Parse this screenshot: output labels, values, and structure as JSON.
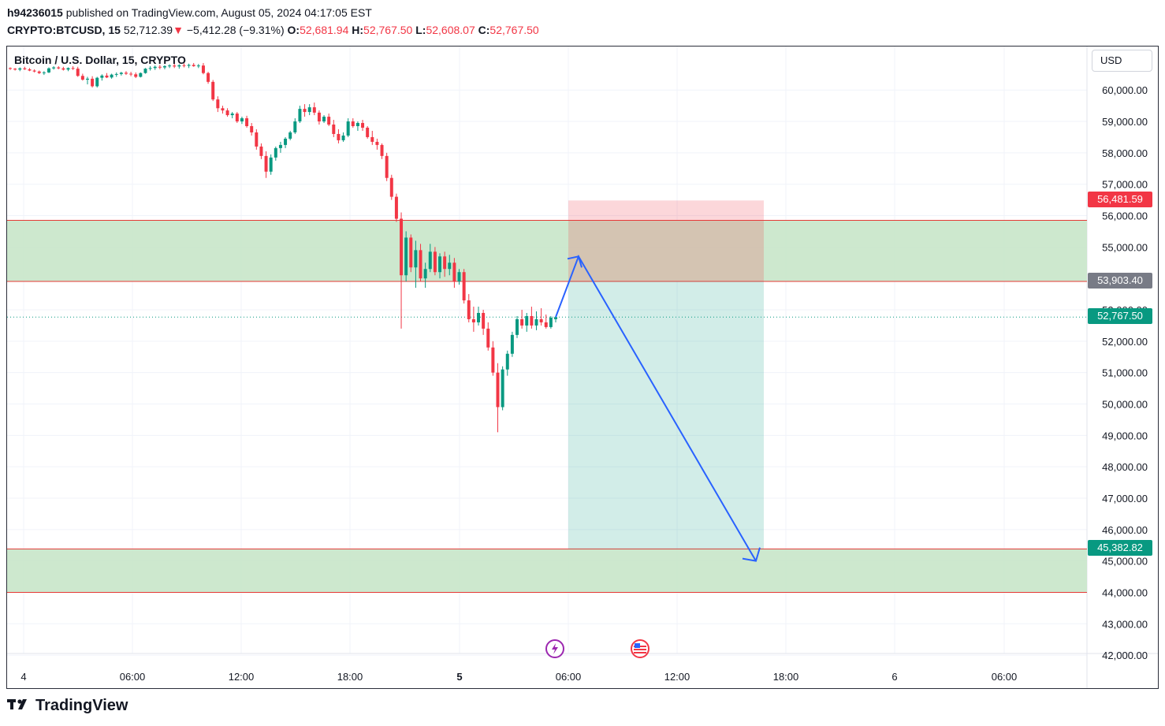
{
  "header": {
    "author": "h94236015",
    "published_text": "published on TradingView.com, August 05, 2024 04:17:05 EST",
    "symbol": "CRYPTO:BTCUSD, 15",
    "last": "52,712.39",
    "arrow": "▼",
    "change": "−5,412.28 (−9.31%)",
    "o_label": "O:",
    "o_value": "52,681.94",
    "h_label": "H:",
    "h_value": "52,767.50",
    "l_label": "L:",
    "l_value": "52,608.07",
    "c_label": "C:",
    "c_value": "52,767.50"
  },
  "chart": {
    "legend": "Bitcoin / U.S. Dollar, 15, CRYPTO",
    "currency_button": "USD",
    "price_axis": [
      "60,000.00",
      "59,000.00",
      "58,000.00",
      "57,000.00",
      "56,000.00",
      "55,000.00",
      "53,000.00",
      "52,000.00",
      "51,000.00",
      "50,000.00",
      "49,000.00",
      "48,000.00",
      "47,000.00",
      "46,000.00",
      "45,000.00",
      "44,000.00",
      "43,000.00",
      "42,000.00"
    ],
    "price_axis_values": [
      60000,
      59000,
      58000,
      57000,
      56000,
      55000,
      53000,
      52000,
      51000,
      50000,
      49000,
      48000,
      47000,
      46000,
      45000,
      44000,
      43000,
      42000
    ],
    "time_axis": [
      {
        "label": "4",
        "bold": false
      },
      {
        "label": "06:00",
        "bold": false
      },
      {
        "label": "12:00",
        "bold": false
      },
      {
        "label": "18:00",
        "bold": false
      },
      {
        "label": "5",
        "bold": true
      },
      {
        "label": "06:00",
        "bold": false
      },
      {
        "label": "12:00",
        "bold": false
      },
      {
        "label": "18:00",
        "bold": false
      },
      {
        "label": "6",
        "bold": false
      },
      {
        "label": "06:00",
        "bold": false
      }
    ],
    "price_tags": [
      {
        "label": "56,481.59",
        "value": 56481.59,
        "color": "#f23645"
      },
      {
        "label": "53,903.40",
        "value": 53903.4,
        "color": "#787b86"
      },
      {
        "label": "52,767.50",
        "value": 52767.5,
        "color": "#089981"
      },
      {
        "label": "45,382.82",
        "value": 45382.82,
        "color": "#089981"
      }
    ],
    "zones": [
      {
        "from": 53903.4,
        "to": 55850,
        "color": "#c8e6c9"
      },
      {
        "from": 44000,
        "to": 45382.82,
        "color": "#c8e6c9"
      }
    ],
    "position": {
      "entry": 53903.4,
      "stop": 56481.59,
      "target": 45382.82
    },
    "current_price": 52767.5,
    "projection": [
      54700,
      45000
    ],
    "colors": {
      "up": "#089981",
      "down": "#f23645",
      "grid": "#f0f3fa",
      "arrow": "#2962ff"
    },
    "candles": [
      [
        60700,
        60720,
        60640,
        60680
      ],
      [
        60680,
        60700,
        60620,
        60650
      ],
      [
        60650,
        60720,
        60600,
        60690
      ],
      [
        60690,
        60740,
        60640,
        60660
      ],
      [
        60660,
        60700,
        60600,
        60620
      ],
      [
        60620,
        60660,
        60560,
        60590
      ],
      [
        60590,
        60620,
        60510,
        60540
      ],
      [
        60540,
        60600,
        60480,
        60560
      ],
      [
        60560,
        60720,
        60540,
        60690
      ],
      [
        60690,
        60760,
        60650,
        60720
      ],
      [
        60720,
        60760,
        60660,
        60690
      ],
      [
        60690,
        60740,
        60620,
        60650
      ],
      [
        60650,
        60720,
        60600,
        60700
      ],
      [
        60700,
        60760,
        60640,
        60680
      ],
      [
        60680,
        60740,
        60420,
        60450
      ],
      [
        60450,
        60520,
        60300,
        60330
      ],
      [
        60330,
        60420,
        60180,
        60360
      ],
      [
        60360,
        60440,
        60080,
        60120
      ],
      [
        60120,
        60420,
        60080,
        60390
      ],
      [
        60390,
        60500,
        60300,
        60460
      ],
      [
        60460,
        60540,
        60380,
        60400
      ],
      [
        60400,
        60520,
        60360,
        60490
      ],
      [
        60490,
        60560,
        60420,
        60510
      ],
      [
        60510,
        60580,
        60460,
        60550
      ],
      [
        60550,
        60600,
        60480,
        60520
      ],
      [
        60520,
        60580,
        60440,
        60500
      ],
      [
        60500,
        60560,
        60380,
        60420
      ],
      [
        60420,
        60560,
        60400,
        60540
      ],
      [
        60540,
        60700,
        60520,
        60680
      ],
      [
        60680,
        60760,
        60620,
        60700
      ],
      [
        60700,
        60780,
        60640,
        60740
      ],
      [
        60740,
        60800,
        60660,
        60720
      ],
      [
        60720,
        60790,
        60660,
        60760
      ],
      [
        60760,
        60820,
        60700,
        60780
      ],
      [
        60780,
        60840,
        60700,
        60750
      ],
      [
        60750,
        60820,
        60680,
        60790
      ],
      [
        60790,
        60850,
        60720,
        60770
      ],
      [
        60770,
        60840,
        60700,
        60800
      ],
      [
        60800,
        60860,
        60740,
        60760
      ],
      [
        60760,
        60830,
        60700,
        60780
      ],
      [
        60780,
        60860,
        60500,
        60540
      ],
      [
        60540,
        60580,
        60200,
        60260
      ],
      [
        60260,
        60320,
        59650,
        59700
      ],
      [
        59700,
        59800,
        59300,
        59420
      ],
      [
        59420,
        59500,
        59250,
        59350
      ],
      [
        59350,
        59420,
        59150,
        59200
      ],
      [
        59200,
        59300,
        59100,
        59250
      ],
      [
        59250,
        59300,
        58950,
        59000
      ],
      [
        59000,
        59150,
        58920,
        59100
      ],
      [
        59100,
        59180,
        58800,
        58850
      ],
      [
        58850,
        58950,
        58550,
        58650
      ],
      [
        58650,
        58750,
        58100,
        58200
      ],
      [
        58200,
        58300,
        57800,
        57900
      ],
      [
        57900,
        58050,
        57200,
        57400
      ],
      [
        57400,
        57950,
        57300,
        57850
      ],
      [
        57850,
        58200,
        57750,
        58150
      ],
      [
        58150,
        58350,
        58000,
        58250
      ],
      [
        58250,
        58500,
        58150,
        58450
      ],
      [
        58450,
        58700,
        58400,
        58650
      ],
      [
        58650,
        59100,
        58600,
        59000
      ],
      [
        59000,
        59500,
        58950,
        59400
      ],
      [
        59400,
        59550,
        59150,
        59300
      ],
      [
        59300,
        59550,
        59200,
        59450
      ],
      [
        59450,
        59600,
        59200,
        59280
      ],
      [
        59280,
        59350,
        58900,
        59000
      ],
      [
        59000,
        59200,
        58950,
        59150
      ],
      [
        59150,
        59250,
        58850,
        58900
      ],
      [
        58900,
        59050,
        58500,
        58600
      ],
      [
        58600,
        58750,
        58300,
        58400
      ],
      [
        58400,
        58650,
        58350,
        58550
      ],
      [
        58550,
        59100,
        58500,
        59000
      ],
      [
        59000,
        59100,
        58800,
        58850
      ],
      [
        58850,
        59000,
        58700,
        58950
      ],
      [
        58950,
        59050,
        58700,
        58800
      ],
      [
        58800,
        58850,
        58450,
        58500
      ],
      [
        58500,
        58700,
        58250,
        58350
      ],
      [
        58350,
        58450,
        58100,
        58250
      ],
      [
        58250,
        58300,
        57800,
        57900
      ],
      [
        57900,
        58000,
        57100,
        57200
      ],
      [
        57200,
        57300,
        56500,
        56600
      ],
      [
        56600,
        56700,
        55800,
        55900
      ],
      [
        55900,
        56100,
        52400,
        54100
      ],
      [
        54100,
        55500,
        53900,
        55300
      ],
      [
        55300,
        55400,
        54200,
        54350
      ],
      [
        54350,
        55200,
        53700,
        54900
      ],
      [
        54900,
        55100,
        53900,
        54000
      ],
      [
        54000,
        54500,
        53700,
        54300
      ],
      [
        54300,
        55100,
        54200,
        54850
      ],
      [
        54850,
        55000,
        54100,
        54200
      ],
      [
        54200,
        54800,
        54000,
        54700
      ],
      [
        54700,
        54850,
        54050,
        54300
      ],
      [
        54300,
        54750,
        54100,
        54500
      ],
      [
        54500,
        54650,
        53700,
        53900
      ],
      [
        53900,
        54300,
        53800,
        54200
      ],
      [
        54200,
        54300,
        53200,
        53300
      ],
      [
        53300,
        53500,
        52600,
        52700
      ],
      [
        52700,
        53100,
        52300,
        52600
      ],
      [
        52600,
        53100,
        52500,
        52900
      ],
      [
        52900,
        53000,
        52200,
        52400
      ],
      [
        52400,
        52600,
        51700,
        51800
      ],
      [
        51800,
        52000,
        50900,
        51000
      ],
      [
        51000,
        51300,
        49100,
        49900
      ],
      [
        49900,
        51200,
        49800,
        51100
      ],
      [
        51100,
        51700,
        50900,
        51600
      ],
      [
        51600,
        52300,
        51500,
        52200
      ],
      [
        52200,
        52800,
        52100,
        52700
      ],
      [
        52700,
        53000,
        52400,
        52500
      ],
      [
        52500,
        52900,
        52300,
        52800
      ],
      [
        52800,
        53100,
        52400,
        52500
      ],
      [
        52500,
        52950,
        52350,
        52700
      ],
      [
        52700,
        53050,
        52500,
        52600
      ],
      [
        52600,
        52850,
        52400,
        52450
      ],
      [
        52450,
        52800,
        52400,
        52750
      ],
      [
        52700,
        52780,
        52600,
        52768
      ]
    ]
  },
  "footer": {
    "brand": "TradingView"
  }
}
